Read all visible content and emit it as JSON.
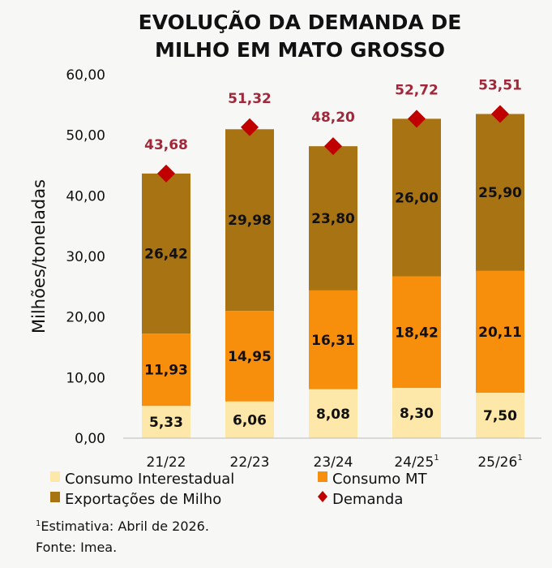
{
  "chart_data": {
    "type": "bar",
    "stacked": true,
    "title_lines": [
      "EVOLUÇÃO DA DEMANDA DE",
      "MILHO EM MATO GROSSO"
    ],
    "ylabel": "Milhões/toneladas",
    "xlabel": "",
    "ylim": [
      0,
      60
    ],
    "yticks": [
      "0,00",
      "10,00",
      "20,00",
      "30,00",
      "40,00",
      "50,00",
      "60,00"
    ],
    "ytick_values": [
      0,
      10,
      20,
      30,
      40,
      50,
      60
    ],
    "grid": false,
    "legend_position": "bottom",
    "categories": [
      "21/22",
      "22/23",
      "23/24",
      "24/25",
      "25/26"
    ],
    "category_superscripts": [
      "",
      "",
      "",
      "1",
      "1"
    ],
    "series": [
      {
        "name": "Consumo Interestadual",
        "color": "#fde7a9",
        "values": [
          5.33,
          6.06,
          8.08,
          8.3,
          7.5
        ],
        "labels": [
          "5,33",
          "6,06",
          "8,08",
          "8,30",
          "7,50"
        ]
      },
      {
        "name": "Consumo MT",
        "color": "#f88f0c",
        "values": [
          11.93,
          14.95,
          16.31,
          18.42,
          20.11
        ],
        "labels": [
          "11,93",
          "14,95",
          "16,31",
          "18,42",
          "20,11"
        ]
      },
      {
        "name": "Exportações de Milho",
        "color": "#a87312",
        "values": [
          26.42,
          29.98,
          23.8,
          26.0,
          25.9
        ],
        "labels": [
          "26,42",
          "29,98",
          "23,80",
          "26,00",
          "25,90"
        ]
      }
    ],
    "demand": {
      "name": "Demanda",
      "color": "#c00000",
      "values": [
        43.68,
        51.32,
        48.2,
        52.72,
        53.51
      ],
      "labels": [
        "43,68",
        "51,32",
        "48,20",
        "52,72",
        "53,51"
      ]
    },
    "notes": [
      "Estimativa: Abril de 2026.",
      "Fonte: Imea."
    ],
    "note_superscript": "1"
  }
}
